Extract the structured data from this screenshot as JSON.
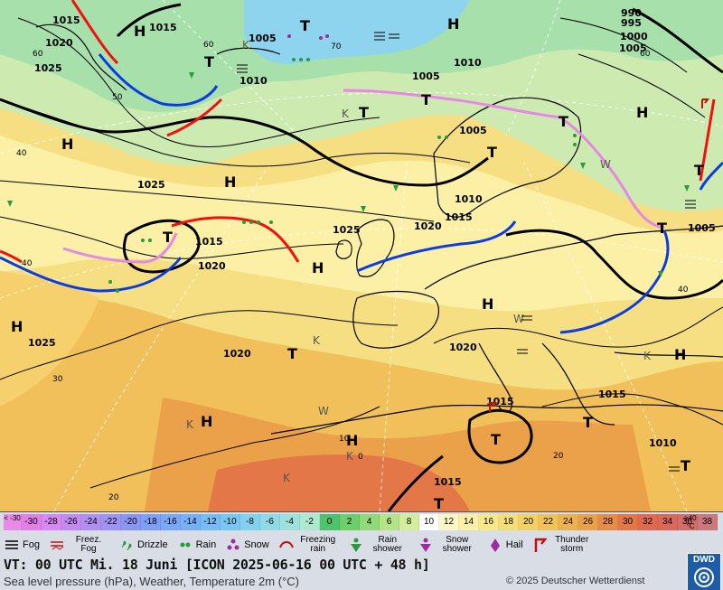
{
  "pressure_labels": [
    {
      "id": "p1015-a",
      "text": "1015"
    },
    {
      "id": "p1020-a",
      "text": "1020"
    },
    {
      "id": "p1025-a",
      "text": "1025"
    },
    {
      "id": "p1015-b",
      "text": "1015"
    },
    {
      "id": "p1005-a",
      "text": "1005"
    },
    {
      "id": "p1010-a",
      "text": "1010"
    },
    {
      "id": "p1010-b",
      "text": "1010"
    },
    {
      "id": "p1005-b",
      "text": "1005"
    },
    {
      "id": "p990",
      "text": "990"
    },
    {
      "id": "p995",
      "text": "995"
    },
    {
      "id": "p1000",
      "text": "1000"
    },
    {
      "id": "p1005-c",
      "text": "1005"
    },
    {
      "id": "p1005-d",
      "text": "1005"
    },
    {
      "id": "p1025-b",
      "text": "1025"
    },
    {
      "id": "p1010-c",
      "text": "1010"
    },
    {
      "id": "p1025-c",
      "text": "1025"
    },
    {
      "id": "p1020-b",
      "text": "1020"
    },
    {
      "id": "p1015-c",
      "text": "1015"
    },
    {
      "id": "p1015-d",
      "text": "1015"
    },
    {
      "id": "p1020-c",
      "text": "1020"
    },
    {
      "id": "p1005-e",
      "text": "1005"
    },
    {
      "id": "p1025-d",
      "text": "1025"
    },
    {
      "id": "p1020-d",
      "text": "1020"
    },
    {
      "id": "p1020-e",
      "text": "1020"
    },
    {
      "id": "p1015-e",
      "text": "1015"
    },
    {
      "id": "p1015-f",
      "text": "1015"
    },
    {
      "id": "p1010-d",
      "text": "1010"
    },
    {
      "id": "p1015-g",
      "text": "1015"
    }
  ],
  "center_labels": {
    "high": "H",
    "low": "T"
  },
  "temp_labels": [
    {
      "id": "t60-a",
      "text": "60"
    },
    {
      "id": "t50",
      "text": "50"
    },
    {
      "id": "t40-a",
      "text": "40"
    },
    {
      "id": "t60-b",
      "text": "60"
    },
    {
      "id": "t70",
      "text": "70"
    },
    {
      "id": "t60-c",
      "text": "60"
    },
    {
      "id": "t40-b",
      "text": "40"
    },
    {
      "id": "t30",
      "text": "30"
    },
    {
      "id": "t20-a",
      "text": "20"
    },
    {
      "id": "t10",
      "text": "10"
    },
    {
      "id": "t0",
      "text": "0"
    },
    {
      "id": "t20-b",
      "text": "20"
    },
    {
      "id": "t40-c",
      "text": "40"
    }
  ],
  "misc_labels": {
    "k": "K",
    "w": "W"
  },
  "legend": {
    "scale_lt": "< -30",
    "scale": [
      {
        "label": "-30",
        "color": "#e27fe8"
      },
      {
        "label": "-28",
        "color": "#d689f0"
      },
      {
        "label": "-26",
        "color": "#c38bf0"
      },
      {
        "label": "-24",
        "color": "#b08ff2"
      },
      {
        "label": "-22",
        "color": "#9e92f2"
      },
      {
        "label": "-20",
        "color": "#8b96f3"
      },
      {
        "label": "-18",
        "color": "#7d9ff5"
      },
      {
        "label": "-16",
        "color": "#7aa8f6"
      },
      {
        "label": "-14",
        "color": "#76b1f6"
      },
      {
        "label": "-12",
        "color": "#77bcf5"
      },
      {
        "label": "-10",
        "color": "#7bc7f3"
      },
      {
        "label": "-8",
        "color": "#82d1ee"
      },
      {
        "label": "-6",
        "color": "#8fdae6"
      },
      {
        "label": "-4",
        "color": "#9ee1dc"
      },
      {
        "label": "-2",
        "color": "#aee8d0"
      },
      {
        "label": "0",
        "color": "#4dc36c"
      },
      {
        "label": "2",
        "color": "#6ccf6a"
      },
      {
        "label": "4",
        "color": "#91da78"
      },
      {
        "label": "6",
        "color": "#b4e389"
      },
      {
        "label": "8",
        "color": "#d4ec9c"
      },
      {
        "label": "10",
        "color": "#ffffff"
      },
      {
        "label": "12",
        "color": "#fdf7c4"
      },
      {
        "label": "14",
        "color": "#fbf0a4"
      },
      {
        "label": "16",
        "color": "#f9e88a"
      },
      {
        "label": "18",
        "color": "#f6de76"
      },
      {
        "label": "20",
        "color": "#f3d165"
      },
      {
        "label": "22",
        "color": "#f0c358"
      },
      {
        "label": "24",
        "color": "#edb24d"
      },
      {
        "label": "26",
        "color": "#eaa048"
      },
      {
        "label": "28",
        "color": "#e78c46"
      },
      {
        "label": "30",
        "color": "#e37747"
      },
      {
        "label": "32",
        "color": "#df6a4f"
      },
      {
        "label": "34",
        "color": "#db6758"
      },
      {
        "label": "36",
        "color": "#d46d6a"
      },
      {
        "label": "38",
        "color": "#cc787a"
      }
    ],
    "scale_gt": "≥40",
    "scale_unit": "°C",
    "symbols": [
      {
        "icon": "fog-icon",
        "label": "Fog"
      },
      {
        "icon": "freezing-fog-icon",
        "label": "Freez. Fog"
      },
      {
        "icon": "drizzle-icon",
        "label": "Drizzle"
      },
      {
        "icon": "rain-icon",
        "label": "Rain"
      },
      {
        "icon": "snow-icon",
        "label": "Snow"
      },
      {
        "icon": "freezing-rain-icon",
        "label": "Freezing rain"
      },
      {
        "icon": "rain-shower-icon",
        "label": "Rain shower"
      },
      {
        "icon": "snow-shower-icon",
        "label": "Snow shower"
      },
      {
        "icon": "hail-icon",
        "label": "Hail"
      },
      {
        "icon": "thunderstorm-icon",
        "label": "Thunder storm"
      }
    ],
    "vt_prefix": "VT: 00 UTC Mi.  18 Juni",
    "vt_model": "[ICON 2025-06-16  00 UTC + 48 h]",
    "subtitle": "Sea level pressure (hPa), Weather, Temperature 2m (°C)",
    "copyright": "© 2025 Deutscher Wetterdienst",
    "logo": "DWD"
  },
  "colors": {
    "cold_front": "#0a3ce0",
    "warm_front": "#f01010",
    "occlusion": "#e48ae4",
    "isobar": "#000000"
  }
}
